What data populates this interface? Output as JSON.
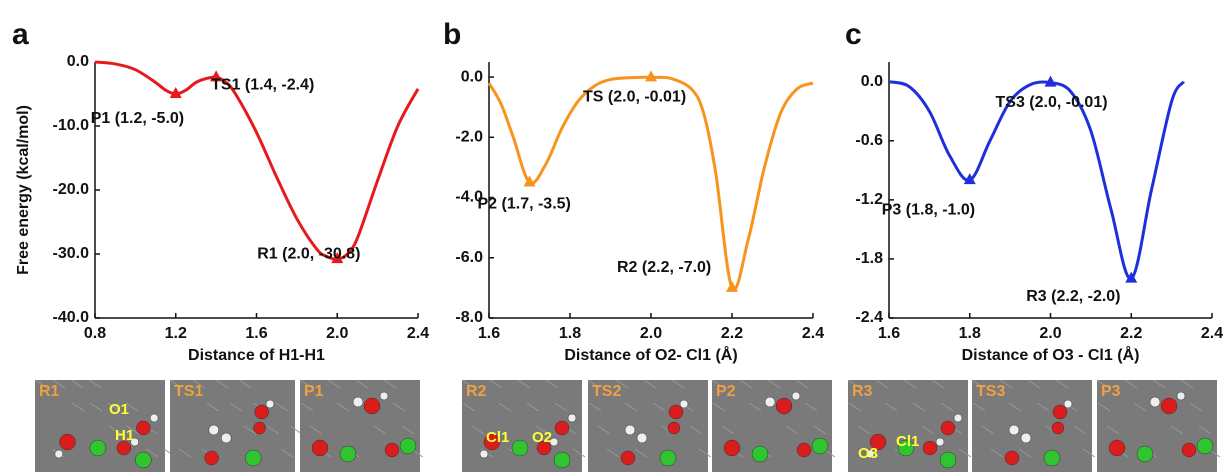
{
  "chart_data": [
    {
      "type": "line",
      "panel": "a",
      "ylabel": "Free energy (kcal/mol)",
      "xlabel": "Distance of H1-H1",
      "color": "#e8191c",
      "x": [
        0.8,
        0.9,
        1.0,
        1.1,
        1.15,
        1.2,
        1.25,
        1.3,
        1.35,
        1.4,
        1.45,
        1.5,
        1.6,
        1.7,
        1.8,
        1.9,
        1.95,
        2.0,
        2.05,
        2.1,
        2.2,
        2.3,
        2.4
      ],
      "values": [
        0,
        -0.3,
        -1.2,
        -3.2,
        -4.4,
        -5.0,
        -4.4,
        -3.2,
        -2.6,
        -2.4,
        -3.2,
        -5.2,
        -11,
        -18,
        -24.5,
        -29.3,
        -30.4,
        -30.8,
        -30.0,
        -27.5,
        -18.5,
        -10,
        -4.2
      ],
      "points": [
        {
          "x": 1.2,
          "y": -5.0,
          "label": "P1 (1.2, -5.0)"
        },
        {
          "x": 1.4,
          "y": -2.4,
          "label": "TS1 (1.4, -2.4)"
        },
        {
          "x": 2.0,
          "y": -30.8,
          "label": "R1 (2.0, -30.8)"
        }
      ],
      "xlim": [
        0.8,
        2.4
      ],
      "xticks": [
        0.8,
        1.2,
        1.6,
        {
          "value": 2,
          "label": "2.0"
        },
        2.4
      ],
      "ylim": [
        -40,
        0
      ],
      "yticks": [
        {
          "value": 0,
          "label": "0.0"
        },
        {
          "value": -10,
          "label": "-10.0"
        },
        {
          "value": -20,
          "label": "-20.0"
        },
        {
          "value": -30,
          "label": "-30.0"
        },
        {
          "value": -40,
          "label": "-40.0"
        }
      ],
      "snapshots": [
        {
          "label": "R1",
          "notes": [
            "O1",
            "H1"
          ]
        },
        {
          "label": "TS1",
          "notes": []
        },
        {
          "label": "P1",
          "notes": []
        }
      ]
    },
    {
      "type": "line",
      "panel": "b",
      "xlabel": "Distance of O2- Cl1 (Å)",
      "color": "#f7941d",
      "x": [
        1.6,
        1.63,
        1.66,
        1.7,
        1.74,
        1.78,
        1.82,
        1.86,
        1.9,
        1.95,
        2.0,
        2.05,
        2.1,
        2.13,
        2.16,
        2.2,
        2.24,
        2.28,
        2.32,
        2.36,
        2.4
      ],
      "values": [
        -0.2,
        -0.9,
        -2.0,
        -3.5,
        -2.9,
        -1.7,
        -0.8,
        -0.3,
        -0.08,
        -0.02,
        -0.01,
        -0.05,
        -0.4,
        -1.2,
        -3.2,
        -7.0,
        -5.4,
        -3.0,
        -1.2,
        -0.4,
        -0.2
      ],
      "points": [
        {
          "x": 1.7,
          "y": -3.5,
          "label": "P2 (1.7, -3.5)"
        },
        {
          "x": 2.0,
          "y": -0.01,
          "label": "TS (2.0, -0.01)"
        },
        {
          "x": 2.2,
          "y": -7.0,
          "label": "R2 (2.2, -7.0)"
        }
      ],
      "xlim": [
        1.6,
        2.4
      ],
      "xticks": [
        1.6,
        1.8,
        {
          "value": 2,
          "label": "2.0"
        },
        2.2,
        2.4
      ],
      "ylim": [
        -8,
        0.5
      ],
      "yticks": [
        {
          "value": 0,
          "label": "0.0"
        },
        {
          "value": -2,
          "label": "-2.0"
        },
        {
          "value": -4,
          "label": "-4.0"
        },
        {
          "value": -6,
          "label": "-6.0"
        },
        {
          "value": -8,
          "label": "-8.0"
        }
      ],
      "snapshots": [
        {
          "label": "R2",
          "notes": [
            "Cl1",
            "O2"
          ]
        },
        {
          "label": "TS2",
          "notes": []
        },
        {
          "label": "P2",
          "notes": []
        }
      ]
    },
    {
      "type": "line",
      "panel": "c",
      "xlabel": "Distance of O3 - Cl1 (Å)",
      "color": "#1f2fdc",
      "x": [
        1.6,
        1.65,
        1.7,
        1.75,
        1.8,
        1.85,
        1.9,
        1.95,
        2.0,
        2.05,
        2.1,
        2.15,
        2.2,
        2.25,
        2.3,
        2.33
      ],
      "values": [
        0,
        -0.05,
        -0.3,
        -0.75,
        -1.0,
        -0.6,
        -0.2,
        -0.03,
        -0.01,
        -0.1,
        -0.5,
        -1.3,
        -2.0,
        -1.1,
        -0.2,
        0
      ],
      "points": [
        {
          "x": 1.8,
          "y": -1.0,
          "label": "P3 (1.8, -1.0)"
        },
        {
          "x": 2.0,
          "y": -0.01,
          "label": "TS3 (2.0, -0.01)"
        },
        {
          "x": 2.2,
          "y": -2.0,
          "label": "R3 (2.2, -2.0)"
        }
      ],
      "xlim": [
        1.6,
        2.4
      ],
      "xticks": [
        1.6,
        1.8,
        {
          "value": 2,
          "label": "2.0"
        },
        2.2,
        2.4
      ],
      "ylim": [
        -2.4,
        0.2
      ],
      "yticks": [
        {
          "value": 0,
          "label": "0.0"
        },
        -0.6,
        -1.2,
        -1.8,
        -2.4
      ],
      "snapshots": [
        {
          "label": "R3",
          "notes": [
            "O3",
            "Cl1"
          ]
        },
        {
          "label": "TS3",
          "notes": []
        },
        {
          "label": "P3",
          "notes": []
        }
      ]
    }
  ]
}
